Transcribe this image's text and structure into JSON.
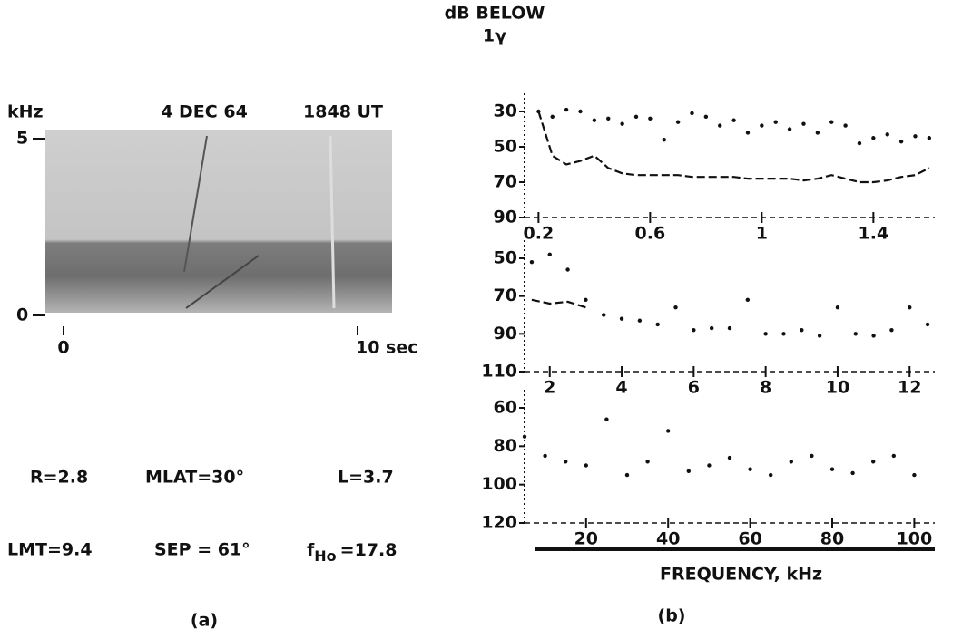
{
  "figure": {
    "panel_a": {
      "y_unit": "kHz",
      "date": "4 DEC 64",
      "time": "1848 UT",
      "y_ticks": [
        "5",
        "0"
      ],
      "x_ticks": [
        "0",
        "10 sec"
      ],
      "params": [
        "R=2.8",
        "MLAT=30°",
        "L=3.7",
        "LMT=9.4",
        "SEP = 61°"
      ],
      "fh_symbol": "f",
      "fh_subscript": "Ho",
      "fh_value": "=17.8",
      "caption": "(a)"
    },
    "panel_b": {
      "y_title": "dB BELOW",
      "y_title_2": "1γ",
      "x_title": "FREQUENCY, kHz",
      "caption": "(b)"
    }
  },
  "chart_data": [
    {
      "type": "line",
      "y_inverted": true,
      "color": "#111",
      "x": [
        0.2,
        0.25,
        0.3,
        0.35,
        0.4,
        0.45,
        0.5,
        0.55,
        0.6,
        0.65,
        0.7,
        0.75,
        0.8,
        0.85,
        0.9,
        0.95,
        1.0,
        1.05,
        1.1,
        1.15,
        1.2,
        1.25,
        1.3,
        1.35,
        1.4,
        1.45,
        1.5,
        1.55,
        1.6
      ],
      "series": [
        {
          "style": "dotted",
          "values": [
            30,
            33,
            29,
            30,
            35,
            34,
            37,
            33,
            34,
            46,
            36,
            31,
            33,
            38,
            35,
            42,
            38,
            36,
            40,
            37,
            42,
            36,
            38,
            48,
            45,
            43,
            47,
            44,
            45
          ]
        },
        {
          "style": "dashed",
          "values": [
            30,
            55,
            60,
            58,
            55,
            62,
            65,
            66,
            66,
            66,
            66,
            67,
            67,
            67,
            67,
            68,
            68,
            68,
            68,
            69,
            68,
            66,
            68,
            70,
            70,
            69,
            67,
            66,
            62
          ]
        }
      ],
      "xlim": [
        0.15,
        1.62
      ],
      "xticks": [
        0.2,
        0.6,
        1.0,
        1.4
      ],
      "ylim": [
        30,
        90
      ],
      "yticks": [
        30,
        50,
        70,
        90
      ]
    },
    {
      "type": "line",
      "y_inverted": true,
      "color": "#111",
      "x": [
        1.5,
        2,
        2.5,
        3,
        3.5,
        4,
        4.5,
        5,
        5.5,
        6,
        6.5,
        7,
        7.5,
        8,
        8.5,
        9,
        9.5,
        10,
        10.5,
        11,
        11.5,
        12,
        12.5
      ],
      "series": [
        {
          "style": "dotted",
          "values": [
            52,
            48,
            56,
            72,
            80,
            82,
            83,
            85,
            76,
            88,
            87,
            87,
            72,
            90,
            90,
            88,
            91,
            76,
            90,
            91,
            88,
            76,
            85
          ]
        },
        {
          "style": "dashed",
          "values": [
            72,
            74,
            73,
            76,
            null,
            null,
            null,
            null,
            null,
            null,
            null,
            null,
            null,
            null,
            null,
            null,
            null,
            null,
            null,
            null,
            null,
            null,
            null
          ]
        }
      ],
      "xlim": [
        1.3,
        12.7
      ],
      "xticks": [
        2,
        4,
        6,
        8,
        10,
        12
      ],
      "ylim": [
        50,
        110
      ],
      "yticks": [
        50,
        70,
        90,
        110
      ]
    },
    {
      "type": "line",
      "y_inverted": true,
      "color": "#111",
      "x": [
        5,
        10,
        15,
        20,
        25,
        30,
        35,
        40,
        45,
        50,
        55,
        60,
        65,
        70,
        75,
        80,
        85,
        90,
        95,
        100
      ],
      "series": [
        {
          "style": "dotted",
          "values": [
            75,
            85,
            88,
            90,
            66,
            95,
            88,
            72,
            93,
            90,
            86,
            92,
            95,
            88,
            85,
            92,
            94,
            88,
            85,
            95
          ]
        }
      ],
      "xlim": [
        5,
        105
      ],
      "xticks": [
        20,
        40,
        60,
        80,
        100
      ],
      "ylim": [
        60,
        120
      ],
      "yticks": [
        60,
        80,
        100,
        120
      ]
    }
  ]
}
